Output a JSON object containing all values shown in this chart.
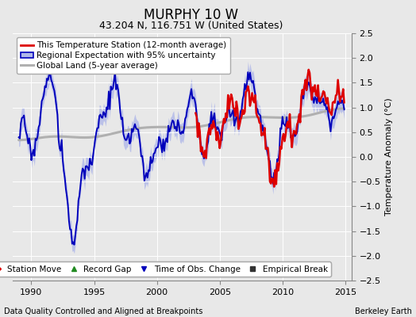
{
  "title": "MURPHY 10 W",
  "subtitle": "43.204 N, 116.751 W (United States)",
  "ylabel": "Temperature Anomaly (°C)",
  "footer_left": "Data Quality Controlled and Aligned at Breakpoints",
  "footer_right": "Berkeley Earth",
  "xlim": [
    1988.5,
    2015.5
  ],
  "ylim": [
    -2.5,
    2.5
  ],
  "xticks": [
    1990,
    1995,
    2000,
    2005,
    2010,
    2015
  ],
  "yticks": [
    -2.5,
    -2,
    -1.5,
    -1,
    -0.5,
    0,
    0.5,
    1,
    1.5,
    2,
    2.5
  ],
  "bg_color": "#e8e8e8",
  "plot_bg": "#dcdcdc",
  "grid_color": "#c8c8c8",
  "station_color": "#dd0000",
  "regional_color": "#0000bb",
  "uncertainty_color": "#b0b8e8",
  "global_color": "#b0b0b0",
  "title_fontsize": 12,
  "subtitle_fontsize": 9,
  "tick_fontsize": 8,
  "ylabel_fontsize": 8,
  "legend_fontsize": 7.5,
  "footer_fontsize": 7
}
